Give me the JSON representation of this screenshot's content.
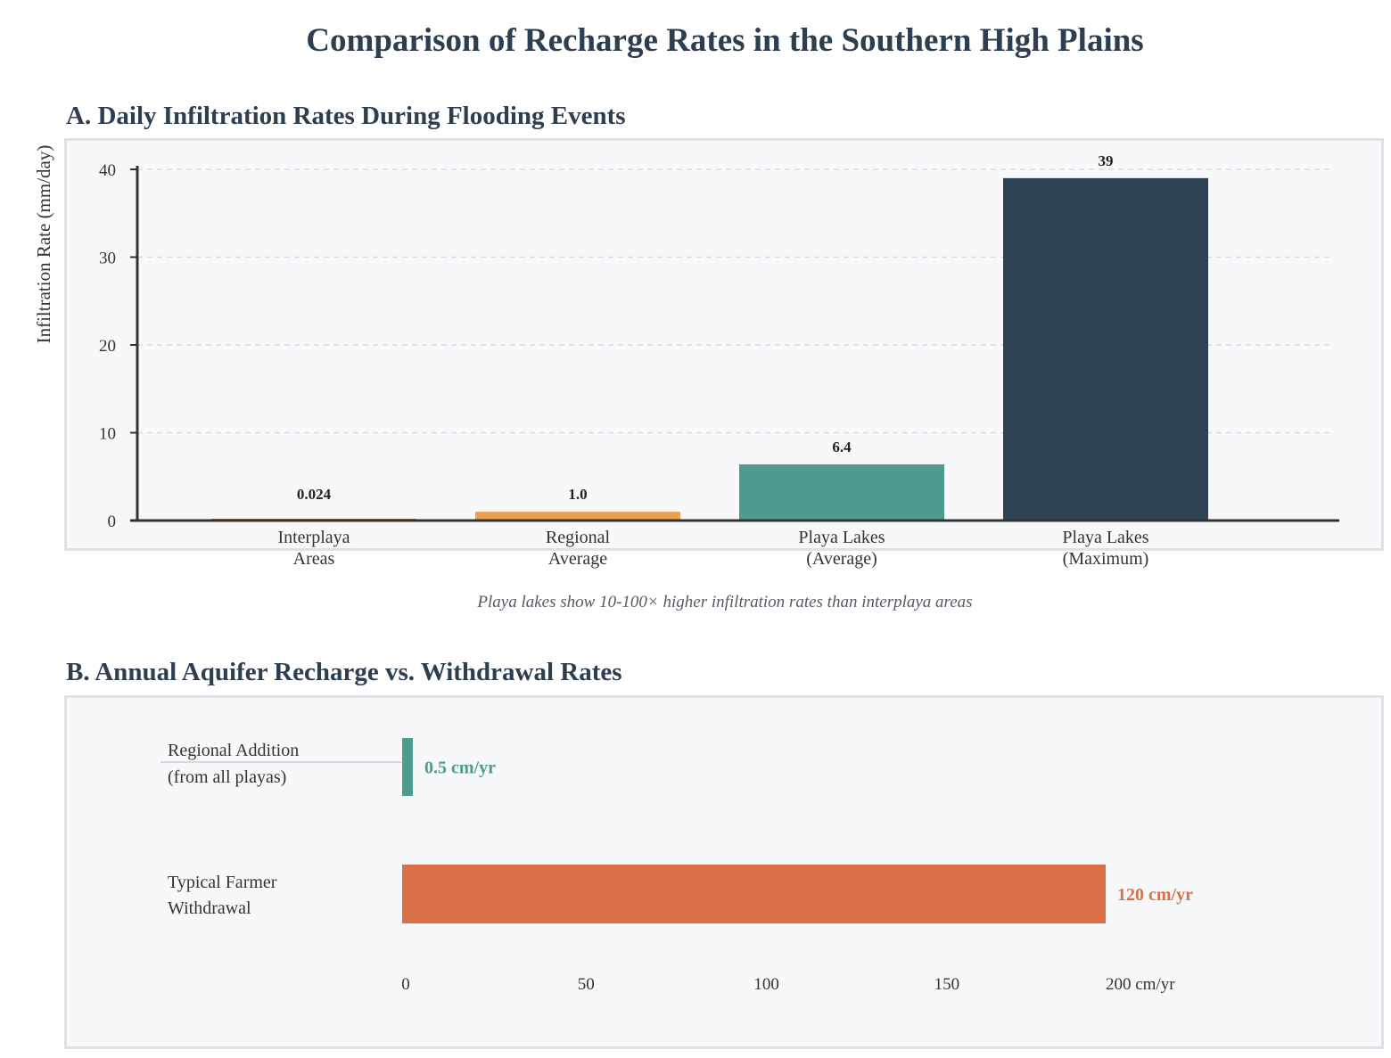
{
  "title": "Comparison of Recharge Rates in the Southern High Plains",
  "chart_data": [
    {
      "type": "bar",
      "title": "A. Daily Infiltration Rates During Flooding Events",
      "ylabel": "Infiltration Rate (mm/day)",
      "ylim": [
        0,
        40
      ],
      "yticks": [
        0,
        10,
        20,
        30,
        40
      ],
      "grid": true,
      "categories": [
        [
          "Interplaya",
          "Areas"
        ],
        [
          "Regional",
          "Average"
        ],
        [
          "Playa Lakes",
          "(Average)"
        ],
        [
          "Playa Lakes",
          "(Maximum)"
        ]
      ],
      "values": [
        0.024,
        1.0,
        6.4,
        39
      ],
      "value_labels": [
        "0.024",
        "1.0",
        "6.4",
        "39"
      ],
      "colors": [
        "#d97046",
        "#e8a14f",
        "#4e9c8e",
        "#2d4351"
      ],
      "caption": "Playa lakes show 10-100× higher infiltration rates than interplaya areas"
    },
    {
      "type": "bar",
      "orientation": "horizontal",
      "title": "B. Annual Aquifer Recharge vs. Withdrawal Rates",
      "xlim": [
        0,
        200
      ],
      "xticks": [
        "0",
        "50",
        "100",
        "150",
        "200 cm/yr"
      ],
      "categories": [
        [
          "Regional Addition",
          "(from all playas)"
        ],
        [
          "Typical Farmer",
          "Withdrawal"
        ]
      ],
      "values": [
        0.5,
        120
      ],
      "value_labels": [
        "0.5 cm/yr",
        "120 cm/yr"
      ],
      "colors": [
        "#4e9c8e",
        "#d97046"
      ]
    }
  ]
}
